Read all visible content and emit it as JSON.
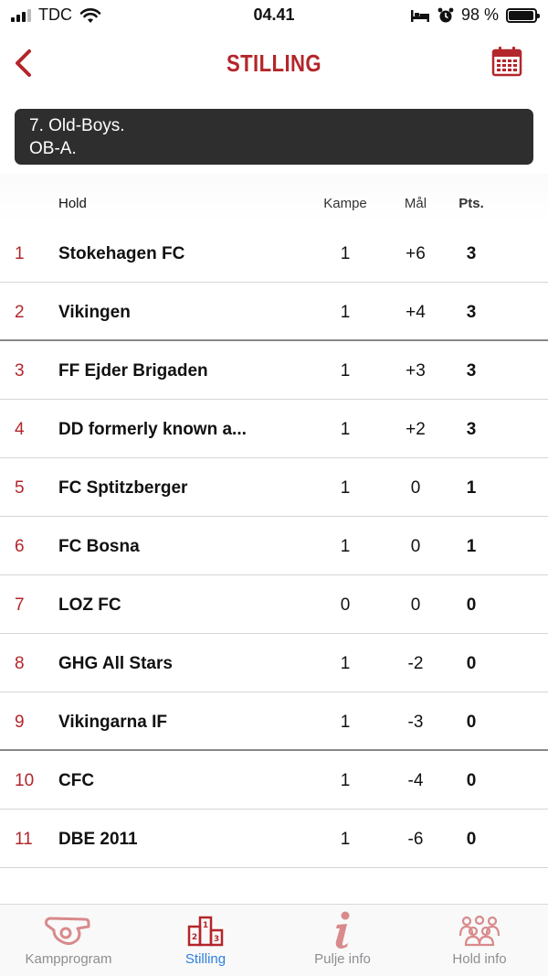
{
  "status": {
    "carrier": "TDC",
    "time": "04.41",
    "battery": "98 %",
    "battery_level": 0.98
  },
  "nav": {
    "title": "STILLING"
  },
  "group": {
    "line1": "7. Old-Boys.",
    "line2": "OB-A."
  },
  "table": {
    "headers": {
      "team": "Hold",
      "matches": "Kampe",
      "goals": "Mål",
      "points": "Pts."
    },
    "rows": [
      {
        "rank": "1",
        "team": "Stokehagen FC",
        "matches": "1",
        "goals": "+6",
        "points": "3"
      },
      {
        "rank": "2",
        "team": "Vikingen",
        "matches": "1",
        "goals": "+4",
        "points": "3"
      },
      {
        "rank": "3",
        "team": "FF Ejder Brigaden",
        "matches": "1",
        "goals": "+3",
        "points": "3"
      },
      {
        "rank": "4",
        "team": "DD formerly known a...",
        "matches": "1",
        "goals": "+2",
        "points": "3"
      },
      {
        "rank": "5",
        "team": "FC Sptitzberger",
        "matches": "1",
        "goals": "0",
        "points": "1"
      },
      {
        "rank": "6",
        "team": "FC Bosna",
        "matches": "1",
        "goals": "0",
        "points": "1"
      },
      {
        "rank": "7",
        "team": "LOZ FC",
        "matches": "0",
        "goals": "0",
        "points": "0"
      },
      {
        "rank": "8",
        "team": "GHG All Stars",
        "matches": "1",
        "goals": "-2",
        "points": "0"
      },
      {
        "rank": "9",
        "team": "Vikingarna IF",
        "matches": "1",
        "goals": "-3",
        "points": "0"
      },
      {
        "rank": "10",
        "team": "CFC",
        "matches": "1",
        "goals": "-4",
        "points": "0"
      },
      {
        "rank": "11",
        "team": "DBE 2011",
        "matches": "1",
        "goals": "-6",
        "points": "0"
      }
    ]
  },
  "tabs": [
    {
      "label": "Kampprogram",
      "icon": "whistle-icon",
      "active": false
    },
    {
      "label": "Stilling",
      "icon": "podium-icon",
      "active": true
    },
    {
      "label": "Pulje info",
      "icon": "info-icon",
      "active": false
    },
    {
      "label": "Hold info",
      "icon": "team-icon",
      "active": false
    }
  ],
  "colors": {
    "accent": "#b3262b",
    "tab_active": "#2f7fdc",
    "tab_inactive_icon": "#d98a8c"
  }
}
